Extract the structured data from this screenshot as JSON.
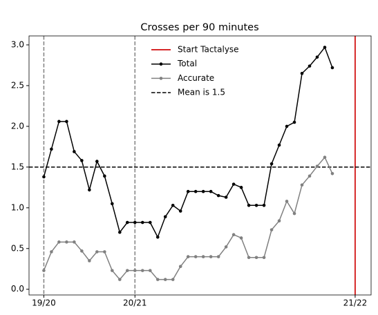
{
  "chart_data": {
    "type": "line",
    "title": "Crosses per 90 minutes",
    "x": [
      0,
      1,
      2,
      3,
      4,
      5,
      6,
      7,
      8,
      9,
      10,
      11,
      12,
      13,
      14,
      15,
      16,
      17,
      18,
      19,
      20,
      21,
      22,
      23,
      24,
      25,
      26,
      27,
      28,
      29,
      30,
      31,
      32,
      33,
      34,
      35,
      36,
      37,
      38
    ],
    "series": [
      {
        "name": "Total",
        "color": "#000000",
        "values": [
          1.38,
          1.72,
          2.06,
          2.06,
          1.69,
          1.58,
          1.22,
          1.57,
          1.39,
          1.05,
          0.7,
          0.82,
          0.82,
          0.82,
          0.82,
          0.64,
          0.89,
          1.03,
          0.96,
          1.2,
          1.2,
          1.2,
          1.2,
          1.15,
          1.13,
          1.29,
          1.25,
          1.03,
          1.03,
          1.03,
          1.54,
          1.77,
          2.0,
          2.05,
          2.65,
          2.74,
          2.85,
          2.97,
          2.72
        ]
      },
      {
        "name": "Accurate",
        "color": "#808080",
        "values": [
          0.23,
          0.46,
          0.58,
          0.58,
          0.58,
          0.47,
          0.35,
          0.46,
          0.46,
          0.23,
          0.12,
          0.23,
          0.23,
          0.23,
          0.23,
          0.12,
          0.12,
          0.12,
          0.28,
          0.4,
          0.4,
          0.4,
          0.4,
          0.4,
          0.52,
          0.67,
          0.63,
          0.39,
          0.39,
          0.39,
          0.73,
          0.84,
          1.08,
          0.93,
          1.28,
          1.39,
          1.51,
          1.62,
          1.42
        ]
      }
    ],
    "reference_lines": [
      {
        "name": "Start Tactalyse",
        "orientation": "vertical",
        "x": 41,
        "color": "#d62728",
        "dashed": false
      },
      {
        "name": "Mean is 1.5",
        "orientation": "horizontal",
        "y": 1.5,
        "color": "#000000",
        "dashed": true
      }
    ],
    "season_lines": {
      "x": [
        0,
        12
      ],
      "color": "#808080"
    },
    "xlim": [
      -1.95,
      43.1
    ],
    "xticks": [
      {
        "value": 0,
        "label": "19/20"
      },
      {
        "value": 12,
        "label": "20/21"
      },
      {
        "value": 41,
        "label": "21/22"
      }
    ],
    "ylim": [
      -0.07,
      3.11
    ],
    "yticks": [
      {
        "value": 0,
        "label": "0.0"
      },
      {
        "value": 0.5,
        "label": "0.5"
      },
      {
        "value": 1,
        "label": "1.0"
      },
      {
        "value": 1.5,
        "label": "1.5"
      },
      {
        "value": 2,
        "label": "2.0"
      },
      {
        "value": 2.5,
        "label": "2.5"
      },
      {
        "value": 3,
        "label": "3.0"
      }
    ],
    "legend": "upper center"
  }
}
